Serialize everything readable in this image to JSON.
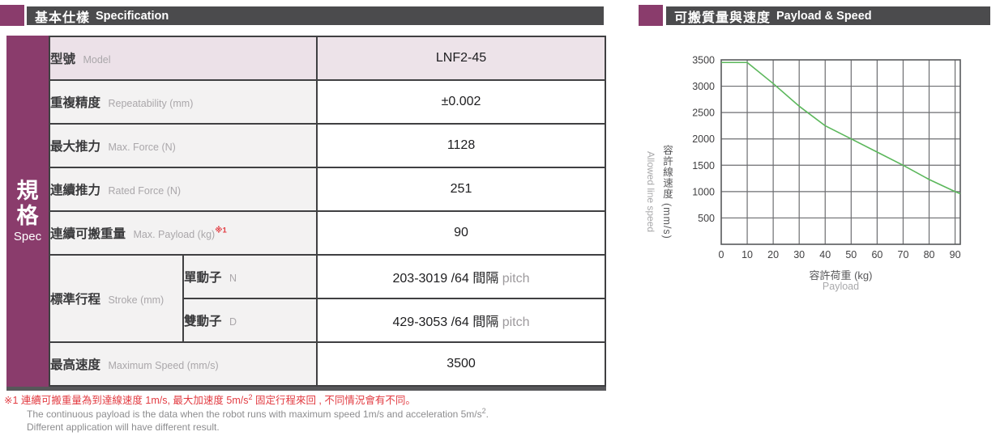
{
  "colors": {
    "accent_purple": "#8a3c6c",
    "header_gray": "#4b4b4d",
    "model_row_pink": "#ece1e8",
    "label_cell_gray": "#f3f2f2",
    "note_red": "#e23b41",
    "line_green": "#5bb75b"
  },
  "left": {
    "header": {
      "zh": "基本仕樣",
      "en": "Specification"
    },
    "sidebar": {
      "zh1": "規",
      "zh2": "格",
      "en": "Spec"
    },
    "table": {
      "rows": [
        {
          "zh": "型號",
          "en": "Model",
          "value": "LNF2-45"
        },
        {
          "zh": "重複精度",
          "en": "Repeatability (mm)",
          "value": "±0.002"
        },
        {
          "zh": "最大推力",
          "en": "Max. Force (N)",
          "value": "1128"
        },
        {
          "zh": "連續推力",
          "en": "Rated Force (N)",
          "value": "251"
        },
        {
          "zh": "連續可搬重量",
          "en": "Max. Payload (kg)",
          "note_ref": "※1",
          "value": "90"
        },
        {
          "zh": "標準行程",
          "en": "Stroke (mm)",
          "sub": [
            {
              "zh": "單動子",
              "en": "N",
              "value": "203-3019 /64 間隔",
              "value_unit": "pitch"
            },
            {
              "zh": "雙動子",
              "en": "D",
              "value": "429-3053 /64 間隔",
              "value_unit": "pitch"
            }
          ]
        },
        {
          "zh": "最高速度",
          "en": "Maximum Speed (mm/s)",
          "value": "3500"
        }
      ]
    },
    "footnote": {
      "red_a": "※1 連續可搬重量為到達線速度 1m/s, 最大加速度 5m/s",
      "red_sup": "2",
      "red_b": " 固定行程來回 , 不同情況會有不同。",
      "en1_a": "The continuous payload is the data when the robot runs with maximum speed 1m/s and acceleration 5m/s",
      "en1_sup": "2",
      "en1_b": ".",
      "en2": "Different application will have different result."
    }
  },
  "right": {
    "header": {
      "zh": "可搬質量與速度",
      "en": "Payload & Speed"
    }
  },
  "chart_data": {
    "type": "line",
    "title": "可搬質量與速度 Payload & Speed",
    "xlabel_zh": "容許荷重 (kg)",
    "xlabel_en": "Payload",
    "ylabel_zh": "容許線速度 (mm/s)",
    "ylabel_en": "Allowed line speed",
    "x": [
      0,
      10,
      20,
      30,
      40,
      50,
      60,
      70,
      80,
      90
    ],
    "y": [
      3450,
      3450,
      3050,
      2620,
      2250,
      2000,
      1750,
      1500,
      1230,
      1000
    ],
    "end_point": [
      92,
      960
    ],
    "xlim": [
      0,
      92
    ],
    "ylim": [
      0,
      3500
    ],
    "x_ticks": [
      0,
      10,
      20,
      30,
      40,
      50,
      60,
      70,
      80,
      90
    ],
    "y_ticks": [
      500,
      1000,
      1500,
      2000,
      2500,
      3000,
      3500
    ],
    "grid": true,
    "legend": false,
    "line_color": "#5bb75b",
    "axis_color": "#58595b",
    "grid_color": "#6d6e71"
  }
}
